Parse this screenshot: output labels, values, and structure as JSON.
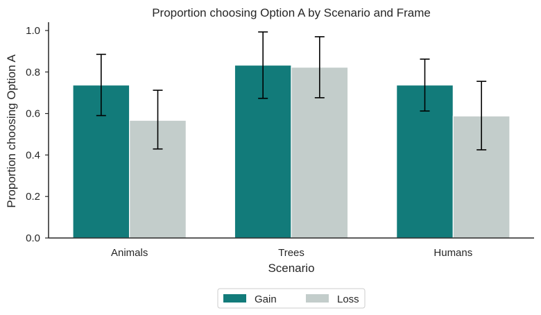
{
  "chart_data": {
    "type": "bar",
    "title": "Proportion choosing Option A by Scenario and Frame",
    "xlabel": "Scenario",
    "ylabel": "Proportion choosing Option A",
    "categories": [
      "Animals",
      "Trees",
      "Humans"
    ],
    "ylim": [
      0,
      1.04
    ],
    "yticks": [
      0.0,
      0.2,
      0.4,
      0.6,
      0.8,
      1.0
    ],
    "ytick_labels": [
      "0.0",
      "0.2",
      "0.4",
      "0.6",
      "0.8",
      "1.0"
    ],
    "grid": false,
    "legend_position": "bottom-center",
    "series": [
      {
        "name": "Gain",
        "color": "#127b7a",
        "values": [
          0.737,
          0.833,
          0.737
        ],
        "err_low": [
          0.59,
          0.673,
          0.612
        ],
        "err_high": [
          0.885,
          0.993,
          0.862
        ]
      },
      {
        "name": "Loss",
        "color": "#c3cdcb",
        "values": [
          0.567,
          0.823,
          0.588
        ],
        "err_low": [
          0.429,
          0.676,
          0.425
        ],
        "err_high": [
          0.712,
          0.97,
          0.755
        ]
      }
    ]
  }
}
